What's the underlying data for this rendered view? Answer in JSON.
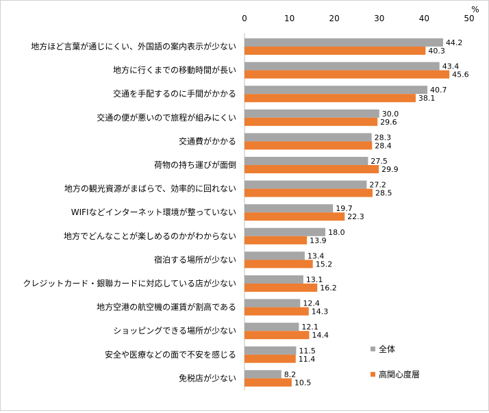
{
  "chart_data": {
    "type": "bar",
    "orientation": "horizontal",
    "unit": "%",
    "xlim": [
      0,
      50
    ],
    "x_ticks": [
      "0",
      "10",
      "20",
      "30",
      "40",
      "50"
    ],
    "grid": false,
    "legend_position": "bottom-right",
    "categories": [
      "地方ほど言葉が通じにくい、外国語の案内表示が少ない",
      "地方に行くまでの移動時間が長い",
      "交通を手配するのに手間がかかる",
      "交通の便が悪いので旅程が組みにくい",
      "交通費がかかる",
      "荷物の持ち運びが面倒",
      "地方の観光資源がまばらで、効率的に回れない",
      "WIFIなどインターネット環境が整っていない",
      "地方でどんなことが楽しめるのかがわからない",
      "宿泊する場所が少ない",
      "クレジットカード・銀聯カードに対応している店が少ない",
      "地方空港の航空機の運賃が割高である",
      "ショッピングできる場所が少ない",
      "安全や医療などの面で不安を感じる",
      "免税店が少ない"
    ],
    "series": [
      {
        "name": "全体",
        "color": "#a6a6a6",
        "values": [
          44.2,
          43.4,
          40.7,
          30.0,
          28.3,
          27.5,
          27.2,
          19.7,
          18.0,
          13.4,
          13.1,
          12.4,
          12.1,
          11.5,
          8.2
        ],
        "labels": [
          "44.2",
          "43.4",
          "40.7",
          "30.0",
          "28.3",
          "27.5",
          "27.2",
          "19.7",
          "18.0",
          "13.4",
          "13.1",
          "12.4",
          "12.1",
          "11.5",
          "8.2"
        ]
      },
      {
        "name": "高関心度層",
        "color": "#ed7d31",
        "values": [
          40.3,
          45.6,
          38.1,
          29.6,
          28.4,
          29.9,
          28.5,
          22.3,
          13.9,
          15.2,
          16.2,
          14.3,
          14.4,
          11.4,
          10.5
        ],
        "labels": [
          "40.3",
          "45.6",
          "38.1",
          "29.6",
          "28.4",
          "29.9",
          "28.5",
          "22.3",
          "13.9",
          "15.2",
          "16.2",
          "14.3",
          "14.4",
          "11.4",
          "10.5"
        ]
      }
    ]
  }
}
